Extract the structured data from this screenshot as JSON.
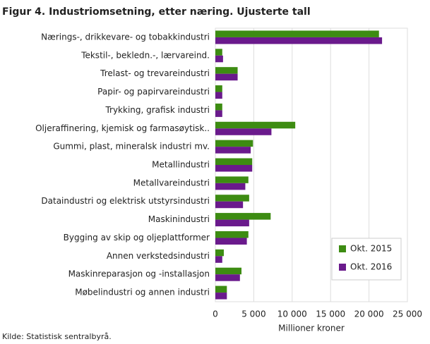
{
  "chart_data": {
    "type": "hbar",
    "title": "Figur 4. Industriomsetning, etter næring. Ujusterte tall",
    "source": "Kilde: Statistisk sentralbyrå.",
    "xlabel": "Millioner  kroner",
    "categories": [
      "Nærings-, drikkevare- og tobakkindustri",
      "Tekstil-, bekledn.-, lærvareind.",
      "Trelast- og trevareindustri",
      "Papir- og papirvareindustri",
      "Trykking, grafisk industri",
      "Oljeraffinering, kjemisk og farmasøytisk..",
      "Gummi, plast, mineralsk industri mv.",
      "Metallindustri",
      "Metallvareindustri",
      "Dataindustri og elektrisk utstyrsindustri",
      "Maskinindustri",
      "Bygging av skip og oljeplattformer",
      "Annen verkstedsindustri",
      "Maskinreparasjon og -installasjon",
      "Møbelindustri og annen industri"
    ],
    "series": [
      {
        "name": "Okt. 2015",
        "color": "#3d8c12",
        "values": [
          21300,
          900,
          2900,
          900,
          900,
          10400,
          4900,
          4800,
          4300,
          4400,
          7200,
          4300,
          1100,
          3400,
          1500
        ]
      },
      {
        "name": "Okt. 2016",
        "color": "#6a1a8c",
        "values": [
          21700,
          1000,
          2900,
          900,
          900,
          7300,
          4600,
          4800,
          3900,
          3600,
          4400,
          4100,
          900,
          3200,
          1500
        ]
      }
    ],
    "xlim": [
      0,
      25000
    ],
    "xticks": [
      0,
      {
        "value": 5000,
        "label": "5 000"
      },
      {
        "value": 10000,
        "label": "10 000"
      },
      {
        "value": 15000,
        "label": "15 000"
      },
      {
        "value": 20000,
        "label": "20 000"
      },
      {
        "value": 25000,
        "label": "25 000"
      }
    ],
    "grid": true,
    "legend": "lower right"
  }
}
